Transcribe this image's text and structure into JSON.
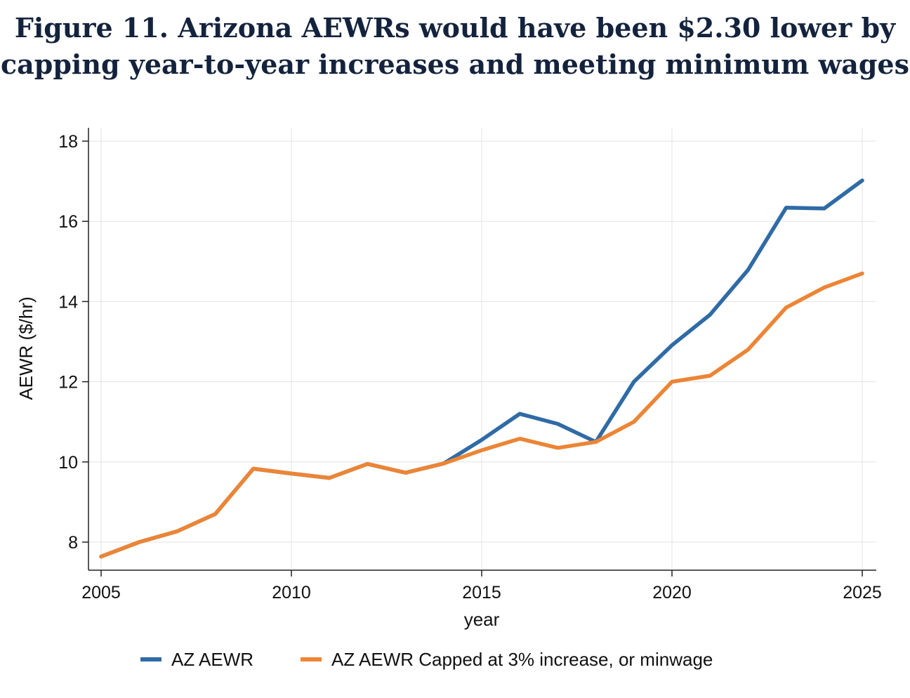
{
  "title_lines": [
    "Figure 11. Arizona AEWRs would have been $2.30 lower by",
    "capping year-to-year increases and meeting minimum wages"
  ],
  "chart_data": {
    "type": "line",
    "title": "Figure 11. Arizona AEWRs would have been $2.30 lower by capping year-to-year increases and meeting minimum wages",
    "xlabel": "year",
    "ylabel": "AEWR ($/hr)",
    "xlim": [
      2005,
      2025
    ],
    "ylim": [
      7.3,
      18.3
    ],
    "xticks": [
      2005,
      2010,
      2015,
      2020,
      2025
    ],
    "yticks": [
      8,
      10,
      12,
      14,
      16,
      18
    ],
    "grid": true,
    "legend_position": "bottom",
    "x": [
      2005,
      2006,
      2007,
      2008,
      2009,
      2010,
      2011,
      2012,
      2013,
      2014,
      2015,
      2016,
      2017,
      2018,
      2019,
      2020,
      2021,
      2022,
      2023,
      2024,
      2025
    ],
    "series": [
      {
        "name": "AZ AEWR",
        "color": "#2f6ba6",
        "values": [
          7.64,
          8.0,
          8.27,
          8.7,
          9.83,
          9.71,
          9.6,
          9.95,
          9.73,
          9.96,
          10.55,
          11.2,
          10.95,
          10.5,
          12.0,
          12.91,
          13.67,
          14.79,
          16.34,
          16.32,
          17.02
        ]
      },
      {
        "name": "AZ AEWR Capped at 3% increase, or minwage",
        "color": "#ec8535",
        "values": [
          7.64,
          8.0,
          8.27,
          8.7,
          9.83,
          9.71,
          9.6,
          9.95,
          9.73,
          9.96,
          10.29,
          10.58,
          10.35,
          10.5,
          11.0,
          12.0,
          12.15,
          12.8,
          13.85,
          14.35,
          14.7
        ]
      }
    ]
  }
}
